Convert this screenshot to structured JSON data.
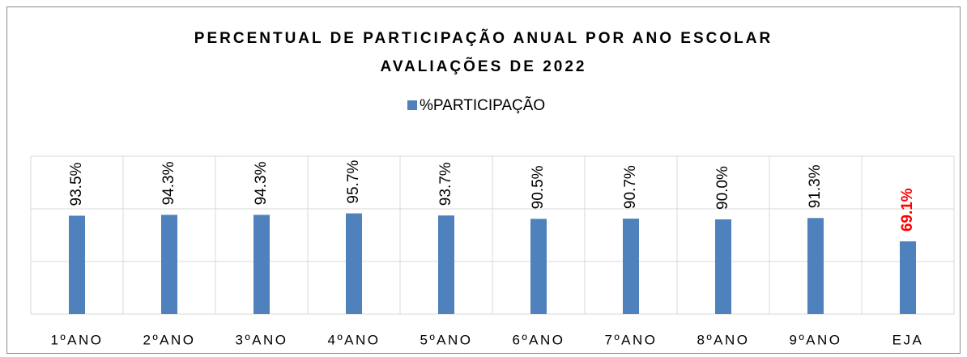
{
  "chart_data": {
    "type": "bar",
    "title": "PERCENTUAL DE PARTICIPAÇÃO ANUAL POR ANO ESCOLAR",
    "subtitle": "AVALIAÇÕES DE 2022",
    "categories": [
      "1ºANO",
      "2ºANO",
      "3ºANO",
      "4ºANO",
      "5ºANO",
      "6ºANO",
      "7ºANO",
      "8ºANO",
      "9ºANO",
      "EJA"
    ],
    "series": [
      {
        "name": "%PARTICIPAÇÃO",
        "color": "#4f81bd",
        "values": [
          93.5,
          94.3,
          94.3,
          95.7,
          93.7,
          90.5,
          90.7,
          90.0,
          91.3,
          69.1
        ],
        "value_labels": [
          "93.5%",
          "94.3%",
          "94.3%",
          "95.7%",
          "93.7%",
          "90.5%",
          "90.7%",
          "90.0%",
          "91.3%",
          "69.1%"
        ],
        "value_label_colors": [
          "#000000",
          "#000000",
          "#000000",
          "#000000",
          "#000000",
          "#000000",
          "#000000",
          "#000000",
          "#000000",
          "#ff0000"
        ]
      }
    ],
    "ylim": [
      0,
      150
    ],
    "yticks": [
      0,
      50,
      100,
      150
    ],
    "grid": true,
    "legend": "top"
  }
}
